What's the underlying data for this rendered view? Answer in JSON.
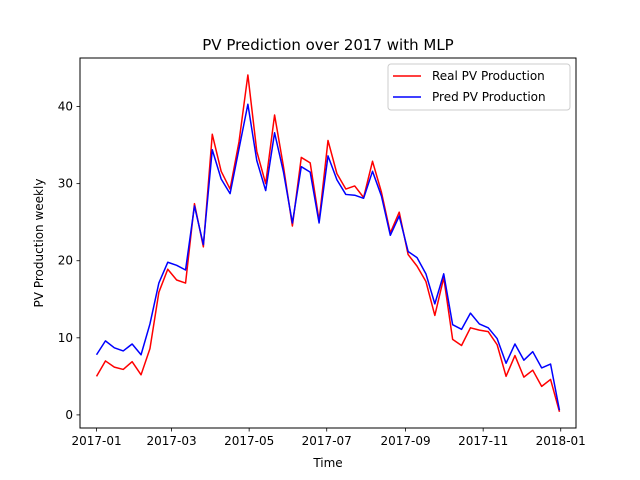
{
  "chart_data": {
    "type": "line",
    "title": "PV Prediction over 2017 with MLP",
    "xlabel": "Time",
    "ylabel": "PV Production weekly",
    "x_ticks": [
      "2017-01",
      "2017-03",
      "2017-05",
      "2017-07",
      "2017-09",
      "2017-11",
      "2018-01"
    ],
    "y_ticks": [
      "0",
      "10",
      "20",
      "30",
      "40"
    ],
    "xlim": [
      "2016-12-19",
      "2018-01-13"
    ],
    "ylim": [
      -1.7,
      46.3
    ],
    "grid": false,
    "legend_position": "top-right",
    "x": [
      "2017-01-01",
      "2017-01-08",
      "2017-01-15",
      "2017-01-22",
      "2017-01-29",
      "2017-02-05",
      "2017-02-12",
      "2017-02-19",
      "2017-02-26",
      "2017-03-05",
      "2017-03-12",
      "2017-03-19",
      "2017-03-26",
      "2017-04-02",
      "2017-04-09",
      "2017-04-16",
      "2017-04-23",
      "2017-04-30",
      "2017-05-07",
      "2017-05-14",
      "2017-05-21",
      "2017-05-28",
      "2017-06-04",
      "2017-06-11",
      "2017-06-18",
      "2017-06-25",
      "2017-07-02",
      "2017-07-09",
      "2017-07-16",
      "2017-07-23",
      "2017-07-30",
      "2017-08-06",
      "2017-08-13",
      "2017-08-20",
      "2017-08-27",
      "2017-09-03",
      "2017-09-10",
      "2017-09-17",
      "2017-09-24",
      "2017-10-01",
      "2017-10-08",
      "2017-10-15",
      "2017-10-22",
      "2017-10-29",
      "2017-11-05",
      "2017-11-12",
      "2017-11-19",
      "2017-11-26",
      "2017-12-03",
      "2017-12-10",
      "2017-12-17",
      "2017-12-24",
      "2017-12-31"
    ],
    "series": [
      {
        "name": "Real PV Production",
        "color": "#ff0000",
        "values": [
          5.0,
          7.0,
          6.2,
          5.9,
          6.9,
          5.2,
          8.6,
          15.9,
          18.9,
          17.5,
          17.1,
          27.4,
          21.8,
          36.4,
          31.6,
          29.3,
          35.4,
          44.1,
          34.2,
          30.0,
          38.9,
          32.2,
          24.5,
          33.4,
          32.7,
          25.2,
          35.6,
          31.3,
          29.3,
          29.7,
          28.2,
          32.9,
          28.9,
          23.6,
          26.3,
          20.8,
          19.3,
          17.3,
          12.9,
          17.8,
          9.8,
          9.0,
          11.3,
          11.0,
          10.8,
          9.1,
          5.0,
          7.7,
          4.9,
          5.8,
          3.7,
          4.6,
          0.4
        ]
      },
      {
        "name": "Pred PV Production",
        "color": "#0000ff",
        "values": [
          7.8,
          9.6,
          8.7,
          8.3,
          9.2,
          7.8,
          11.8,
          17.1,
          19.8,
          19.4,
          18.8,
          27.1,
          22.1,
          34.4,
          30.6,
          28.7,
          34.5,
          40.3,
          33.0,
          29.1,
          36.6,
          31.5,
          24.9,
          32.2,
          31.5,
          24.9,
          33.6,
          30.5,
          28.6,
          28.5,
          28.1,
          31.6,
          28.4,
          23.3,
          25.8,
          21.2,
          20.4,
          18.3,
          14.4,
          18.3,
          11.7,
          11.1,
          13.2,
          11.8,
          11.3,
          9.9,
          6.7,
          9.2,
          7.1,
          8.2,
          6.1,
          6.6,
          0.6
        ]
      }
    ]
  }
}
